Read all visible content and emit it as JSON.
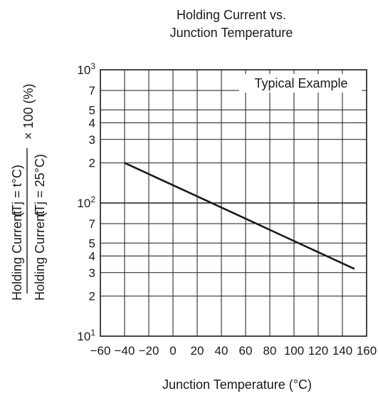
{
  "chart_data": {
    "type": "line",
    "title_lines": [
      "Holding Current vs.",
      "Junction Temperature"
    ],
    "xlabel": "Junction Temperature  (°C)",
    "ylabel": {
      "prefix": "Holding Current",
      "numerator": "(Tj = t°C)",
      "denominator": "(Tj = 25°C)",
      "suffix": "× 100 (%)"
    },
    "annotation": "Typical Example",
    "x_scale": "linear",
    "y_scale": "log",
    "xlim": [
      -60,
      160
    ],
    "ylim": [
      10,
      1000
    ],
    "grid": true,
    "x_ticks": [
      -60,
      -40,
      -20,
      0,
      20,
      40,
      60,
      80,
      100,
      120,
      140,
      160
    ],
    "x_tick_labels": [
      "−60",
      "−40",
      "−20",
      "0",
      "20",
      "40",
      "60",
      "80",
      "100",
      "120",
      "140",
      "160"
    ],
    "y_ticks": [
      {
        "value": 10,
        "base": "10",
        "exp": "1"
      },
      {
        "value": 20,
        "label": "2"
      },
      {
        "value": 30,
        "label": "3"
      },
      {
        "value": 40,
        "label": "4"
      },
      {
        "value": 50,
        "label": "5"
      },
      {
        "value": 70,
        "label": "7"
      },
      {
        "value": 100,
        "base": "10",
        "exp": "2"
      },
      {
        "value": 200,
        "label": "2"
      },
      {
        "value": 300,
        "label": "3"
      },
      {
        "value": 400,
        "label": "4"
      },
      {
        "value": 500,
        "label": "5"
      },
      {
        "value": 700,
        "label": "7"
      },
      {
        "value": 1000,
        "base": "10",
        "exp": "3"
      }
    ],
    "series": [
      {
        "x": [
          -40,
          150
        ],
        "y": [
          200,
          32
        ]
      }
    ]
  }
}
